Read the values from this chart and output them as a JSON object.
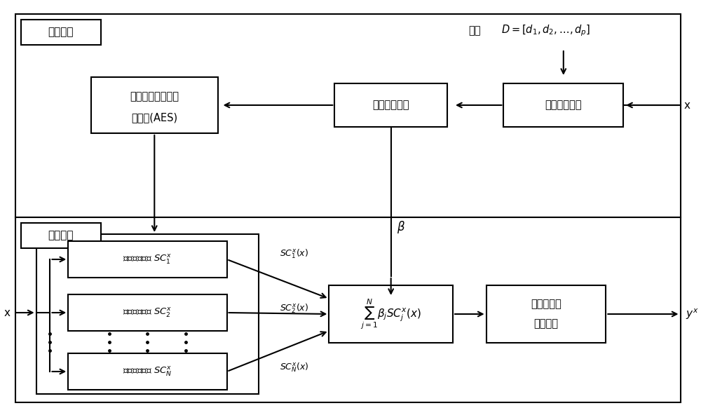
{
  "bg_color": "#ffffff",
  "stage1_label": "第一阶段",
  "stage2_label": "第二阶段",
  "dict_label": "字典",
  "dict_formula": "$D=[d_1,d_2,\\ldots,d_p]$",
  "box1_text": "计算稀疏系数",
  "box2_text": "提取非零系数",
  "box3_line1": "提取对应的原子集",
  "box3_line2": "成系统(AES)",
  "box_sc1_text": "原子集成系统 $SC_1^x$",
  "box_sc2_text": "原子集成系统 $SC_2^x$",
  "box_scN_text": "原子集成系统 $SC_N^x$",
  "box_sum_text": "$\\sum_{j=1}^{N}\\beta_j SC_j^x(x)$",
  "box_max_line1": "取最大値对",
  "box_max_line2": "应的类别",
  "sc1_label": "$SC_1^x(x)$",
  "sc2_label": "$SC_2^x(x)$",
  "scN_label": "$SC_N^x(x)$",
  "beta_label": "$\\beta$",
  "x_label": "x",
  "yx_label": "$y^x$"
}
